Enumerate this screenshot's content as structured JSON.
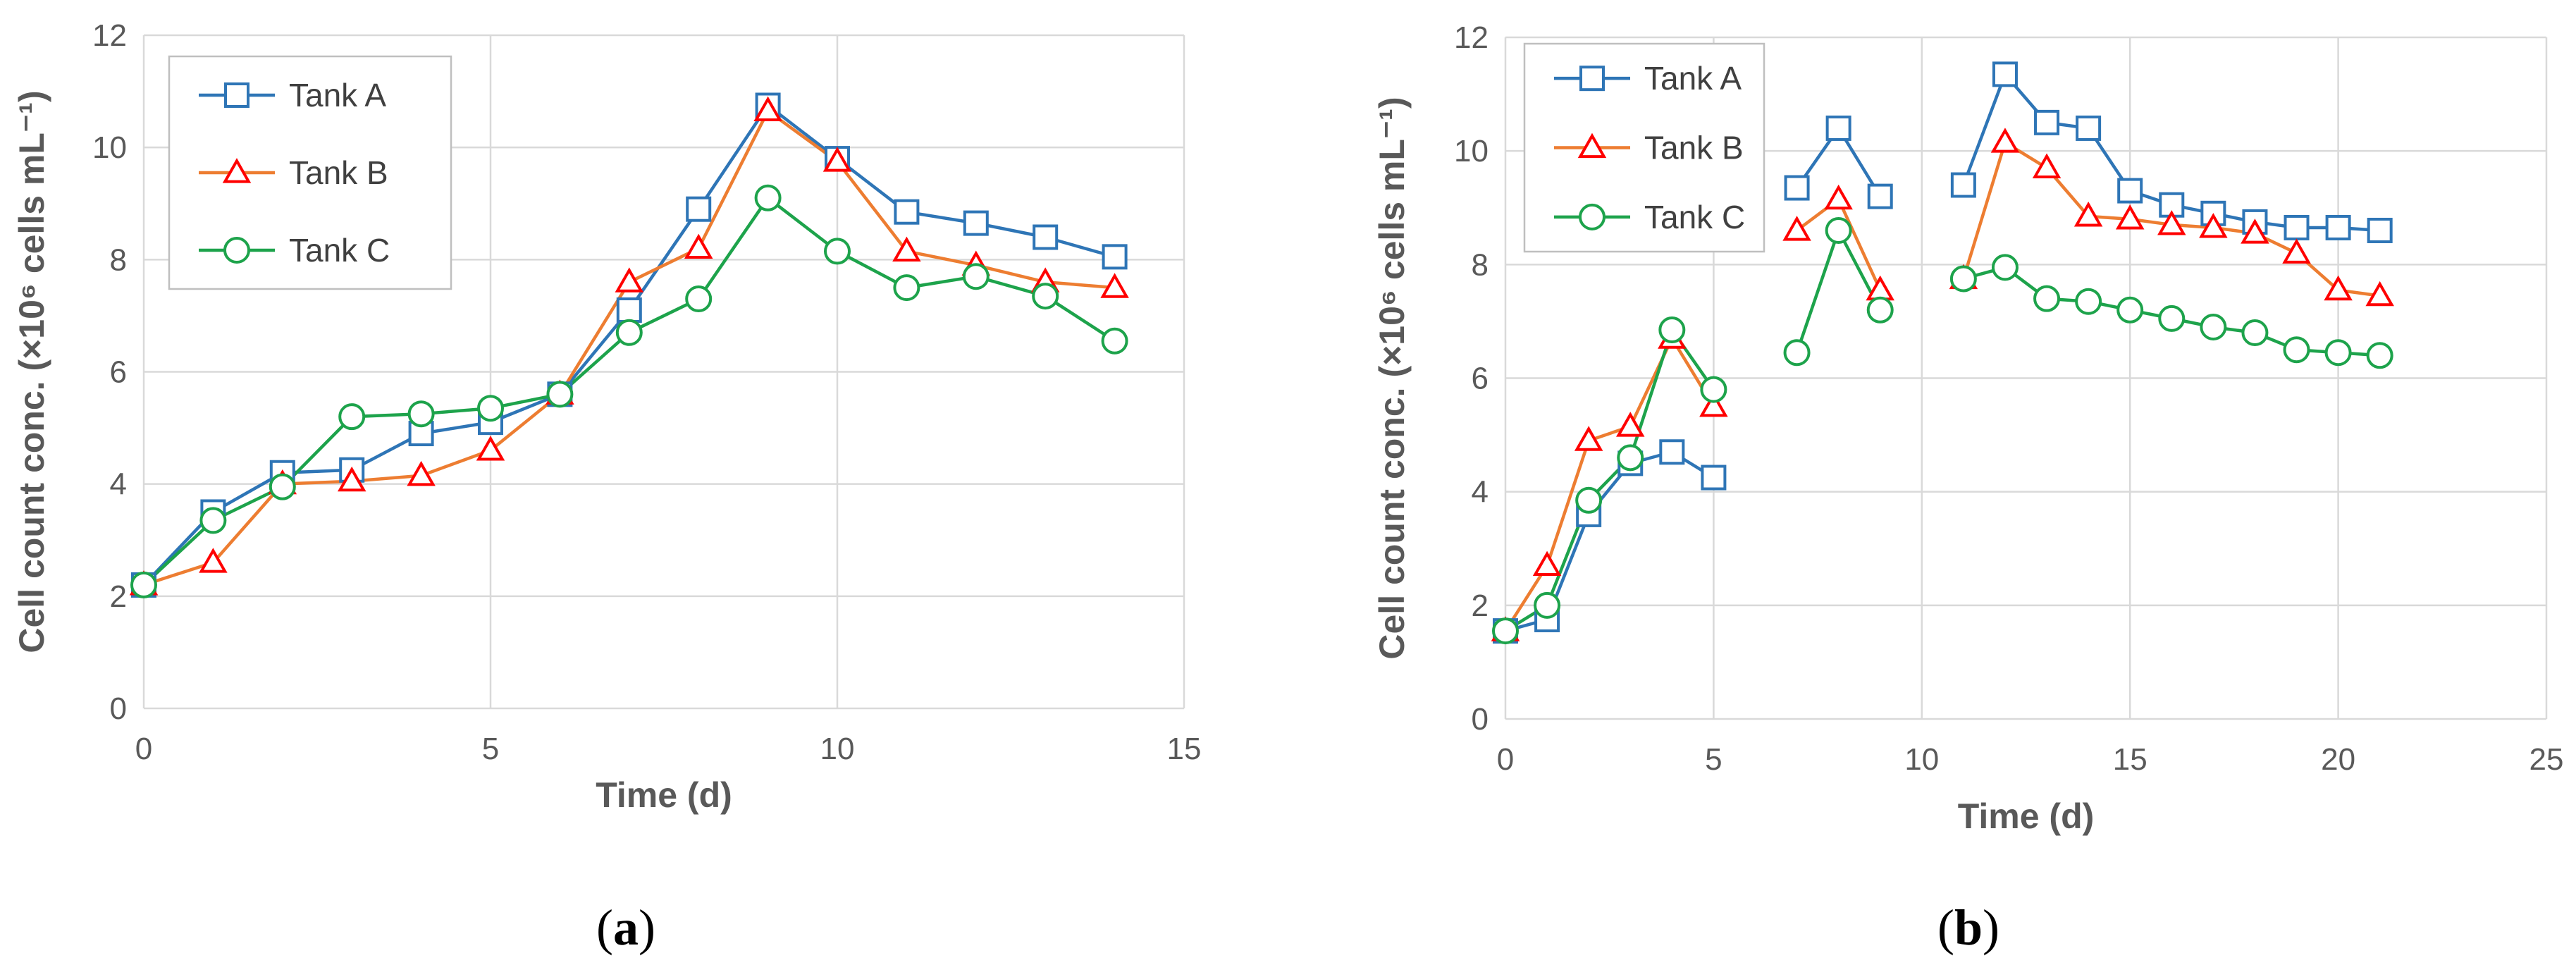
{
  "chart_data": [
    {
      "type": "line",
      "panel": "a",
      "xlabel": "Time (d)",
      "ylabel": "Cell count conc. (×10⁶ cells mL⁻¹)",
      "xlim": [
        0,
        15
      ],
      "ylim": [
        0,
        12
      ],
      "xticks": [
        0,
        5,
        10,
        15
      ],
      "yticks": [
        0,
        2,
        4,
        6,
        8,
        10,
        12
      ],
      "grid": true,
      "legend": "top-left",
      "series": [
        {
          "name": "Tank A",
          "color": "#2E75B6",
          "marker": "square",
          "segments": [
            {
              "x": [
                0,
                1,
                2,
                3,
                4,
                5,
                6,
                7,
                8,
                9,
                10,
                11,
                12,
                13,
                14
              ],
              "y": [
                2.2,
                3.5,
                4.2,
                4.25,
                4.9,
                5.1,
                5.6,
                7.1,
                8.9,
                10.75,
                9.8,
                8.85,
                8.65,
                8.4,
                8.05
              ]
            }
          ]
        },
        {
          "name": "Tank B",
          "color": "#ED7D31",
          "marker": "triangle",
          "segments": [
            {
              "x": [
                0,
                1,
                2,
                3,
                4,
                5,
                6,
                7,
                8,
                9,
                10,
                11,
                12,
                13,
                14
              ],
              "y": [
                2.2,
                2.6,
                4.0,
                4.05,
                4.15,
                4.6,
                5.6,
                7.6,
                8.2,
                10.65,
                9.75,
                8.15,
                7.9,
                7.6,
                7.5
              ]
            }
          ]
        },
        {
          "name": "Tank C",
          "color": "#1DA34B",
          "marker": "circle",
          "segments": [
            {
              "x": [
                0,
                1,
                2,
                3,
                4,
                5,
                6,
                7,
                8,
                9,
                10,
                11,
                12,
                13,
                14
              ],
              "y": [
                2.2,
                3.35,
                3.95,
                5.2,
                5.25,
                5.35,
                5.6,
                6.7,
                7.3,
                9.1,
                8.15,
                7.5,
                7.7,
                7.35,
                6.55
              ]
            }
          ]
        }
      ]
    },
    {
      "type": "line",
      "panel": "b",
      "xlabel": "Time (d)",
      "ylabel": "Cell count conc. (×10⁶ cells mL⁻¹)",
      "xlim": [
        0,
        25
      ],
      "ylim": [
        0,
        12
      ],
      "xticks": [
        0,
        5,
        10,
        15,
        20,
        25
      ],
      "yticks": [
        0,
        2,
        4,
        6,
        8,
        10,
        12
      ],
      "grid": true,
      "legend": "top-left",
      "series": [
        {
          "name": "Tank A",
          "color": "#2E75B6",
          "marker": "square",
          "segments": [
            {
              "x": [
                0,
                1,
                2,
                3,
                4,
                5
              ],
              "y": [
                1.55,
                1.75,
                3.6,
                4.5,
                4.7,
                4.25
              ]
            },
            {
              "x": [
                7,
                8,
                9
              ],
              "y": [
                9.35,
                10.4,
                9.2
              ]
            },
            {
              "x": [
                11,
                12,
                13,
                14,
                15,
                16,
                17,
                18,
                19,
                20,
                21
              ],
              "y": [
                9.4,
                11.35,
                10.5,
                10.4,
                9.3,
                9.05,
                8.9,
                8.75,
                8.65,
                8.65,
                8.6
              ]
            }
          ]
        },
        {
          "name": "Tank B",
          "color": "#ED7D31",
          "marker": "triangle",
          "segments": [
            {
              "x": [
                0,
                1,
                2,
                3,
                4,
                5
              ],
              "y": [
                1.55,
                2.7,
                4.9,
                5.15,
                6.7,
                5.5
              ]
            },
            {
              "x": [
                7,
                8,
                9
              ],
              "y": [
                8.6,
                9.15,
                7.55
              ]
            },
            {
              "x": [
                11,
                12,
                13,
                14,
                15,
                16,
                17,
                18,
                19,
                20,
                21
              ],
              "y": [
                7.75,
                10.15,
                9.7,
                8.85,
                8.8,
                8.7,
                8.65,
                8.55,
                8.2,
                7.55,
                7.45
              ]
            }
          ]
        },
        {
          "name": "Tank C",
          "color": "#1DA34B",
          "marker": "circle",
          "segments": [
            {
              "x": [
                0,
                1,
                2,
                3,
                4,
                5
              ],
              "y": [
                1.55,
                2.0,
                3.85,
                4.6,
                6.85,
                5.8
              ]
            },
            {
              "x": [
                7,
                8,
                9
              ],
              "y": [
                6.45,
                8.6,
                7.2
              ]
            },
            {
              "x": [
                11,
                12,
                13,
                14,
                15,
                16,
                17,
                18,
                19,
                20,
                21
              ],
              "y": [
                7.75,
                7.95,
                7.4,
                7.35,
                7.2,
                7.05,
                6.9,
                6.8,
                6.5,
                6.45,
                6.4
              ]
            }
          ]
        }
      ]
    }
  ],
  "captions": {
    "a": {
      "open": "(",
      "letter": "a",
      "close": ")"
    },
    "b": {
      "open": "(",
      "letter": "b",
      "close": ")"
    }
  }
}
